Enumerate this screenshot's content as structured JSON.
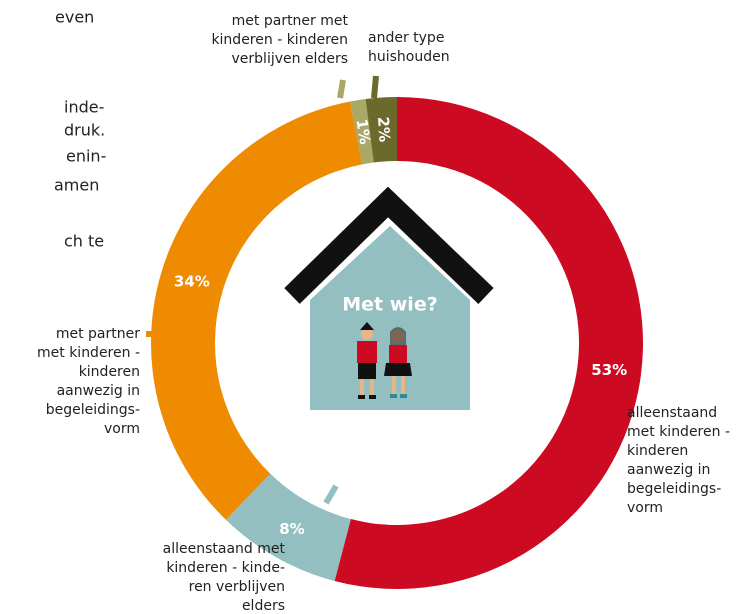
{
  "text_fragments": [
    "even",
    "inde-",
    "druk.",
    "enin-",
    "amen",
    "ch te"
  ],
  "chart_data": {
    "type": "donut",
    "center_label": "Met wie?",
    "categories": [
      "alleenstaand\nmet kinderen -\nkinderen\naanwezig in\nbegeleidings-\nvorm",
      "alleenstaand met\nkinderen - kinde-\nren verblijven\nelders",
      "met partner\nmet kinderen -\nkinderen\naanwezig in\nbegeleidings-\nvorm",
      "met partner met\nkinderen - kinderen\nverblijven elders",
      "ander type\nhuishouden"
    ],
    "values": [
      53,
      8,
      34,
      1,
      2
    ],
    "value_labels": [
      "53%",
      "8%",
      "34%",
      "1%",
      "2%"
    ],
    "colors": [
      "#cc0a22",
      "#93bfc0",
      "#ef8b00",
      "#a9a866",
      "#6b6a2c"
    ]
  }
}
